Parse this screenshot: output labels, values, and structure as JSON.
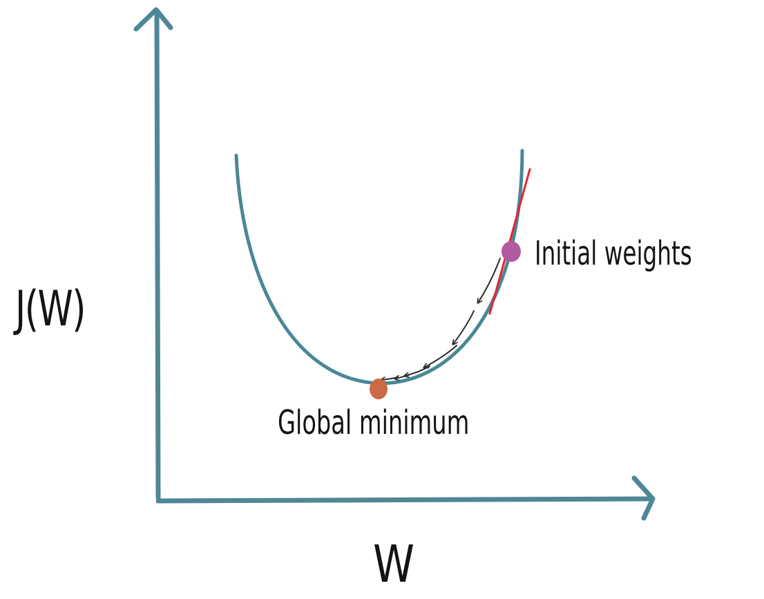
{
  "diagram": {
    "y_axis_label": "J(W)",
    "x_axis_label": "W",
    "start_point_label": "Initial weights",
    "end_point_label": "Global minimum",
    "colors": {
      "axes": "#4f8796",
      "curve": "#4a8797",
      "tangent": "#e8232c",
      "initial_point": "#b05a9f",
      "minimum_point": "#cc6a45",
      "step_arrows": "#2b2b2b",
      "text": "#141414"
    }
  }
}
